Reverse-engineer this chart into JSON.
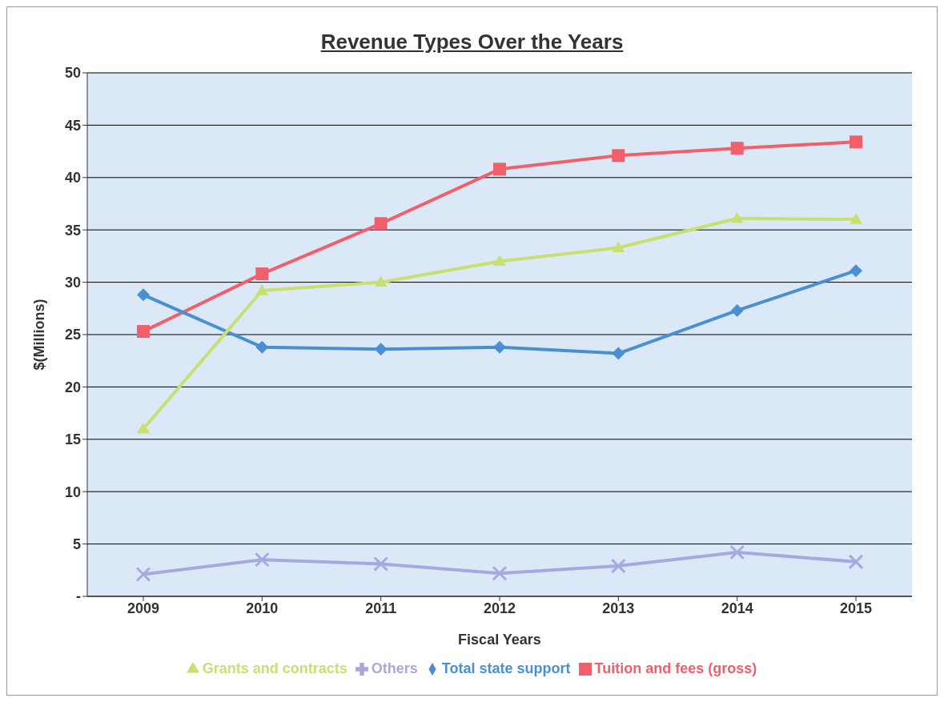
{
  "chart_data": {
    "type": "line",
    "title": "Revenue Types Over the Years",
    "xlabel": "Fiscal Years",
    "ylabel": "$(Millions)",
    "categories": [
      "2009",
      "2010",
      "2011",
      "2012",
      "2013",
      "2014",
      "2015"
    ],
    "series": [
      {
        "name": "Tuition and fees (gross)",
        "color": "#f0606a",
        "marker": "square",
        "values": [
          25.3,
          30.8,
          35.6,
          40.8,
          42.1,
          42.8,
          43.4
        ]
      },
      {
        "name": "Total state support",
        "color": "#4a90d0",
        "marker": "diamond",
        "values": [
          28.8,
          23.8,
          23.6,
          23.8,
          23.2,
          27.3,
          31.1
        ]
      },
      {
        "name": "Grants and contracts",
        "color": "#c8e070",
        "marker": "triangle",
        "values": [
          16,
          29.2,
          30,
          32,
          33.3,
          36.1,
          36
        ]
      },
      {
        "name": "Others",
        "color": "#a8a8e0",
        "marker": "cross",
        "values": [
          2.1,
          3.5,
          3.1,
          2.2,
          2.9,
          4.2,
          3.3
        ]
      }
    ],
    "ylim": [
      0,
      50
    ],
    "yticks": [
      {
        "value": 0,
        "label": "-"
      },
      5,
      10,
      15,
      20,
      25,
      30,
      35,
      40,
      45,
      50
    ],
    "grid": "y",
    "legend": "bottom"
  }
}
